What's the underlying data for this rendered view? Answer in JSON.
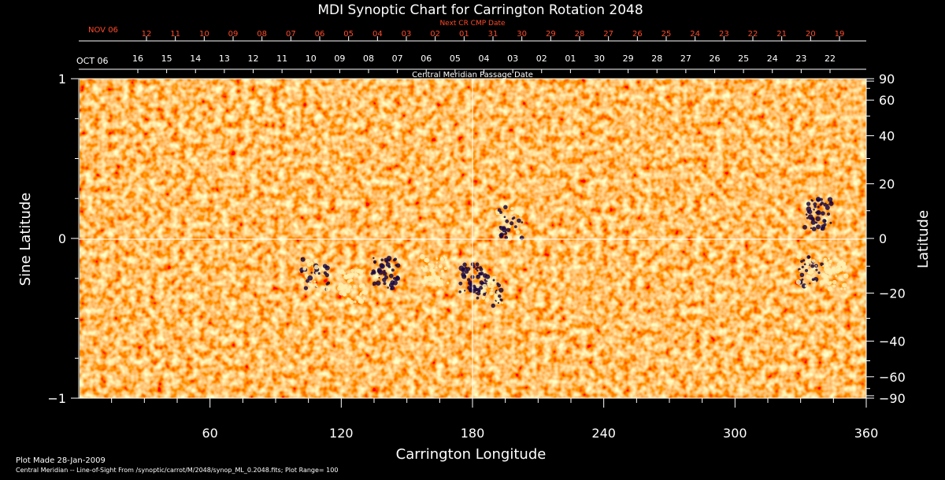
{
  "chart_data": {
    "type": "heatmap",
    "title": "MDI Synoptic Chart for Carrington Rotation 2048",
    "xlabel": "Carrington Longitude",
    "ylabel_left": "Sine Latitude",
    "ylabel_right": "Latitude",
    "xlim": [
      0,
      360
    ],
    "ylim": [
      -1,
      1
    ],
    "x_ticks": [
      60,
      120,
      180,
      240,
      300,
      360
    ],
    "y_ticks_left": [
      {
        "value": 1,
        "label": "1"
      },
      {
        "value": 0,
        "label": "0"
      },
      {
        "value": -1,
        "label": "−1"
      }
    ],
    "y_ticks_right": [
      90,
      60,
      40,
      20,
      0,
      -20,
      -40,
      -60,
      -90
    ],
    "y_ticks_right_labels": [
      "90",
      "60",
      "40",
      "20",
      "0",
      "−20",
      "−40",
      "−60",
      "−90"
    ],
    "central_meridian_label": "Central Meridian Passage Date",
    "cmp_start_label": "OCT 06",
    "cmp_dates": [
      "16",
      "15",
      "14",
      "13",
      "12",
      "11",
      "10",
      "09",
      "08",
      "07",
      "06",
      "05",
      "04",
      "03",
      "02",
      "01",
      "30",
      "29",
      "28",
      "27",
      "26",
      "25",
      "24",
      "23",
      "22"
    ],
    "next_cr_label": "Next CR CMP Date",
    "next_cr_start_label": "NOV 06",
    "next_cr_dates": [
      "12",
      "11",
      "10",
      "09",
      "08",
      "07",
      "06",
      "05",
      "04",
      "03",
      "02",
      "01",
      "31",
      "30",
      "29",
      "28",
      "27",
      "26",
      "25",
      "24",
      "23",
      "22",
      "21",
      "20",
      "19"
    ],
    "colors": {
      "background": "#000000",
      "field_base": "#ff5a14",
      "positive_polarity": "#fff0b0",
      "negative_polarity": "#1a0840",
      "next_cr_text": "#ff4a2a"
    },
    "active_regions": [
      {
        "lon": 108,
        "sinlat": -0.22,
        "polarity": "mixed"
      },
      {
        "lon": 125,
        "sinlat": -0.3,
        "polarity": "positive"
      },
      {
        "lon": 140,
        "sinlat": -0.22,
        "polarity": "negative"
      },
      {
        "lon": 163,
        "sinlat": -0.2,
        "polarity": "positive"
      },
      {
        "lon": 180,
        "sinlat": -0.25,
        "polarity": "negative"
      },
      {
        "lon": 188,
        "sinlat": -0.33,
        "polarity": "mixed"
      },
      {
        "lon": 197,
        "sinlat": 0.1,
        "polarity": "mixed"
      },
      {
        "lon": 335,
        "sinlat": -0.2,
        "polarity": "mixed"
      },
      {
        "lon": 345,
        "sinlat": -0.22,
        "polarity": "positive"
      },
      {
        "lon": 338,
        "sinlat": 0.15,
        "polarity": "negative"
      }
    ],
    "grid": "meridian 180 and equator lines"
  },
  "footer": {
    "plot_made": "Plot Made 28-Jan-2009",
    "source": "Central Meridian -- Line-of-Sight From /synoptic/carrot/M/2048/synop_ML_0.2048.fits; Plot Range= 100"
  }
}
